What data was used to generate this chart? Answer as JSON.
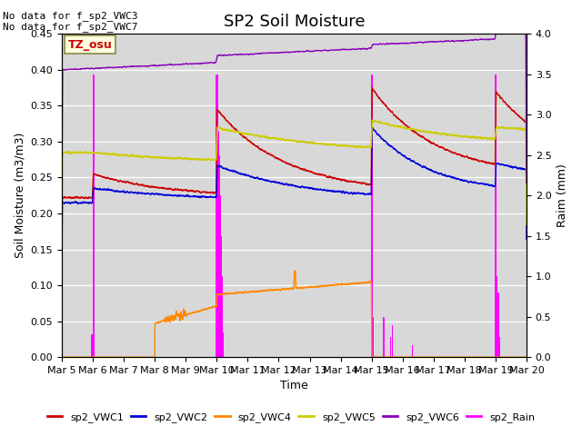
{
  "title": "SP2 Soil Moisture",
  "ylabel_left": "Soil Moisture (m3/m3)",
  "ylabel_right": "Raim (mm)",
  "xlabel": "Time",
  "ylim_left": [
    0.0,
    0.45
  ],
  "ylim_right": [
    0.0,
    4.0
  ],
  "xtick_labels": [
    "Mar 5",
    "Mar 6",
    "Mar 7",
    "Mar 8",
    "Mar 9",
    "Mar 10",
    "Mar 11",
    "Mar 12",
    "Mar 13",
    "Mar 14",
    "Mar 15",
    "Mar 16",
    "Mar 17",
    "Mar 18",
    "Mar 19",
    "Mar 20"
  ],
  "background_color": "#d8d8d8",
  "no_data_text": "No data for f_sp2_VWC3\nNo data for f_sp2_VWC7",
  "tz_label": "TZ_osu",
  "title_fontsize": 13,
  "label_fontsize": 9,
  "tick_fontsize": 8,
  "colors": {
    "vwc1": "#cc0000",
    "vwc2": "#0000dd",
    "vwc4": "#ff8800",
    "vwc5": "#cccc00",
    "vwc6": "#8800bb",
    "rain": "#ff00ff"
  },
  "legend_entries": [
    "sp2_VWC1",
    "sp2_VWC2",
    "sp2_VWC4",
    "sp2_VWC5",
    "sp2_VWC6",
    "sp2_Rain"
  ]
}
